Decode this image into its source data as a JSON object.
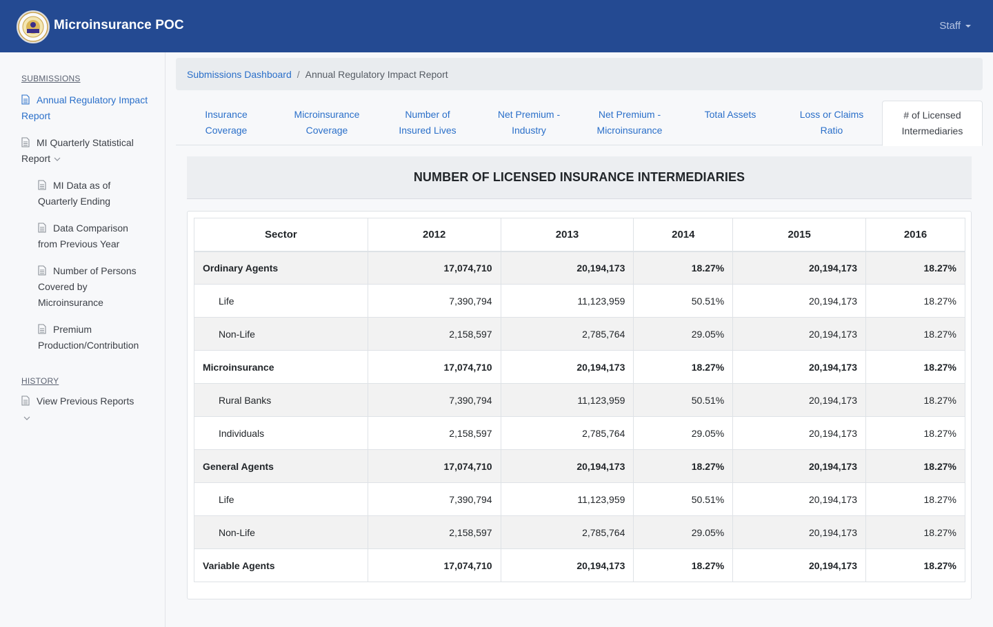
{
  "app": {
    "title": "Microinsurance POC",
    "user_menu": "Staff"
  },
  "sidebar": {
    "submissions_heading": "SUBMISSIONS",
    "history_heading": "HISTORY",
    "items": [
      {
        "label": "Annual Regulatory Impact Report"
      },
      {
        "label": "MI Quarterly Statistical Report"
      },
      {
        "label": "MI Data as of Quarterly Ending"
      },
      {
        "label": "Data Comparison from Previous Year"
      },
      {
        "label": "Number of Persons Covered by Microinsurance"
      },
      {
        "label": "Premium Production/Contribution"
      },
      {
        "label": "View Previous Reports"
      }
    ]
  },
  "breadcrumb": {
    "root": "Submissions Dashboard",
    "separator": "/",
    "current": "Annual Regulatory Impact Report"
  },
  "tabs": [
    {
      "line1": "Insurance",
      "line2": "Coverage"
    },
    {
      "line1": "Microinsurance",
      "line2": "Coverage"
    },
    {
      "line1": "Number of",
      "line2": "Insured Lives"
    },
    {
      "line1": "Net Premium -",
      "line2": "Industry"
    },
    {
      "line1": "Net Premium -",
      "line2": "Microinsurance"
    },
    {
      "line1": "Total Assets",
      "line2": ""
    },
    {
      "line1": "Loss or Claims",
      "line2": "Ratio"
    },
    {
      "line1": "# of Licensed",
      "line2": "Intermediaries"
    }
  ],
  "report": {
    "title": "NUMBER OF LICENSED INSURANCE INTERMEDIARIES",
    "columns": [
      "Sector",
      "2012",
      "2013",
      "2014",
      "2015",
      "2016"
    ],
    "rows": [
      {
        "cells": [
          "Ordinary Agents",
          "17,074,710",
          "20,194,173",
          "18.27%",
          "20,194,173",
          "18.27%"
        ]
      },
      {
        "cells": [
          "Life",
          "7,390,794",
          "11,123,959",
          "50.51%",
          "20,194,173",
          "18.27%"
        ]
      },
      {
        "cells": [
          "Non-Life",
          "2,158,597",
          "2,785,764",
          "29.05%",
          "20,194,173",
          "18.27%"
        ]
      },
      {
        "cells": [
          "Microinsurance",
          "17,074,710",
          "20,194,173",
          "18.27%",
          "20,194,173",
          "18.27%"
        ]
      },
      {
        "cells": [
          "Rural Banks",
          "7,390,794",
          "11,123,959",
          "50.51%",
          "20,194,173",
          "18.27%"
        ]
      },
      {
        "cells": [
          "Individuals",
          "2,158,597",
          "2,785,764",
          "29.05%",
          "20,194,173",
          "18.27%"
        ]
      },
      {
        "cells": [
          "General Agents",
          "17,074,710",
          "20,194,173",
          "18.27%",
          "20,194,173",
          "18.27%"
        ]
      },
      {
        "cells": [
          "Life",
          "7,390,794",
          "11,123,959",
          "50.51%",
          "20,194,173",
          "18.27%"
        ]
      },
      {
        "cells": [
          "Non-Life",
          "2,158,597",
          "2,785,764",
          "29.05%",
          "20,194,173",
          "18.27%"
        ]
      },
      {
        "cells": [
          "Variable Agents",
          "17,074,710",
          "20,194,173",
          "18.27%",
          "20,194,173",
          "18.27%"
        ]
      }
    ]
  },
  "colors": {
    "navbar": "#244a92",
    "link": "#2a6fc9",
    "stripe": "#f2f2f2"
  }
}
